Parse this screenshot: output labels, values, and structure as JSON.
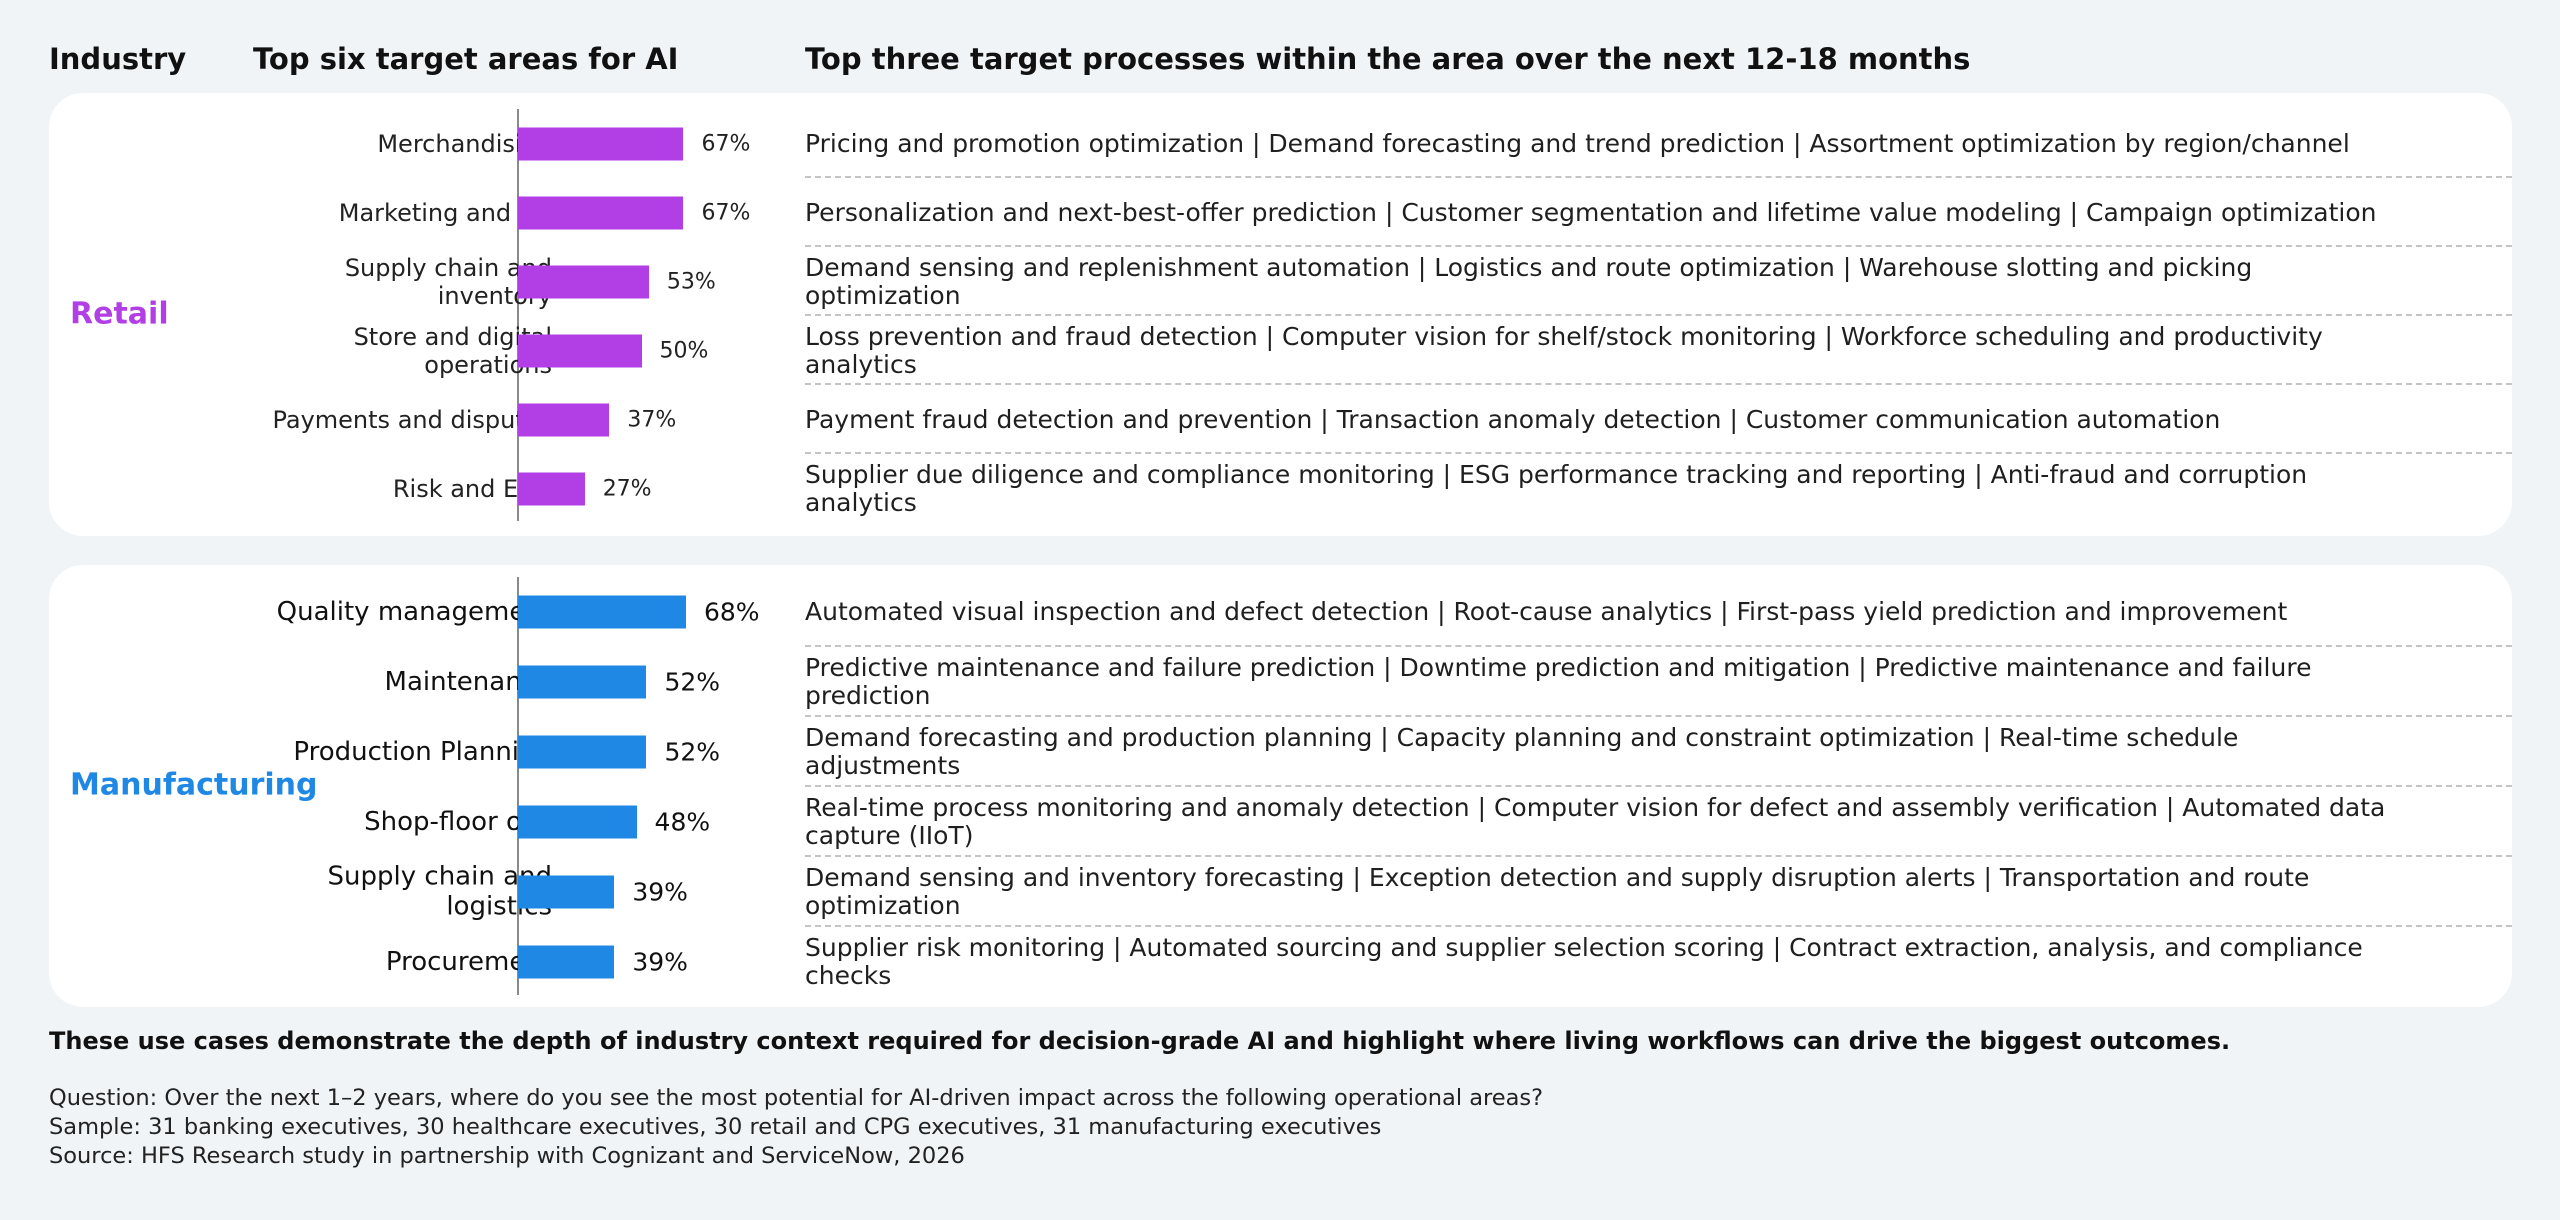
{
  "headers": {
    "industry": "Industry",
    "areas": "Top six target areas for AI",
    "processes": "Top three target processes within the area over the next 12-18 months"
  },
  "colors": {
    "retail": "#b23ee6",
    "manufacturing": "#1f88e5"
  },
  "chart_data": [
    {
      "type": "bar",
      "orientation": "horizontal",
      "industry": "Retail",
      "categories": [
        "Merchandising",
        "Marketing and CX",
        "Supply chain and inventory",
        "Store and digital operations",
        "Payments and disputes",
        "Risk and ESG"
      ],
      "values": [
        67,
        67,
        53,
        50,
        37,
        27
      ],
      "value_labels": [
        "67%",
        "67%",
        "53%",
        "50%",
        "37%",
        "27%"
      ],
      "processes": [
        "Pricing and promotion optimization | Demand forecasting and trend prediction | Assortment optimization by region/channel",
        "Personalization and next-best-offer prediction | Customer segmentation and lifetime value modeling | Campaign optimization",
        "Demand sensing and replenishment automation | Logistics and route optimization | Warehouse slotting and picking optimization",
        "Loss prevention and fraud detection | Computer vision for shelf/stock monitoring | Workforce scheduling and productivity analytics",
        "Payment fraud detection and prevention | Transaction anomaly detection | Customer communication automation",
        "Supplier due diligence and compliance monitoring | ESG performance tracking and reporting | Anti-fraud and corruption analytics"
      ],
      "color": "#b23ee6"
    },
    {
      "type": "bar",
      "orientation": "horizontal",
      "industry": "Manufacturing",
      "categories": [
        "Quality management",
        "Maintenance",
        "Production Planning",
        "Shop-floor ops",
        "Supply chain and logistics",
        "Procurement"
      ],
      "values": [
        68,
        52,
        52,
        48,
        39,
        39
      ],
      "value_labels": [
        "68%",
        "52%",
        "52%",
        "48%",
        "39%",
        "39%"
      ],
      "processes": [
        "Automated visual inspection and defect detection | Root-cause analytics | First-pass yield prediction and improvement",
        "Predictive maintenance and failure prediction | Downtime prediction and mitigation | Predictive maintenance and failure prediction",
        "Demand forecasting and production planning | Capacity planning and constraint optimization | Real-time schedule adjustments",
        "Real-time process monitoring and anomaly detection | Computer vision for defect and assembly verification | Automated data capture (IIoT)",
        "Demand sensing and inventory forecasting | Exception detection and supply disruption alerts | Transportation and route optimization",
        "Supplier risk monitoring | Automated sourcing and supplier selection scoring | Contract extraction, analysis, and compliance checks"
      ],
      "color": "#1f88e5"
    }
  ],
  "takeaway": "These use cases demonstrate the depth of industry context required for decision-grade AI and highlight where living workflows can drive the biggest outcomes.",
  "footnotes": {
    "question": "Question: Over the next 1–2 years, where do you see the most potential for AI-driven impact across the following operational areas?",
    "sample": "Sample: 31 banking executives, 30 healthcare executives, 30 retail and CPG executives, 31 manufacturing executives",
    "source": "Source: HFS Research study in partnership with Cognizant and ServiceNow, 2026"
  }
}
